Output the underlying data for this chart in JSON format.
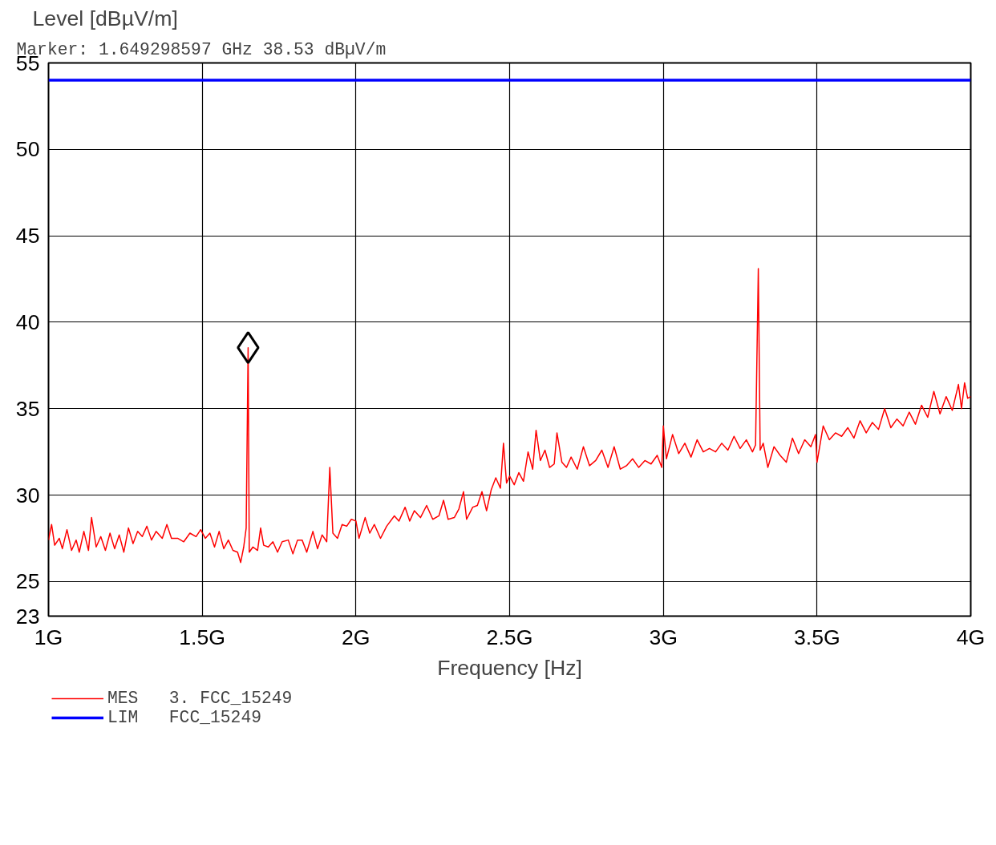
{
  "chart_data": {
    "type": "line",
    "xlabel": "Frequency [Hz]",
    "ylabel": "Level [dBµV/m]",
    "annotations": [
      "Marker:       1.649298597 GHz      38.53 dBµV/m"
    ],
    "xlim": [
      1,
      4
    ],
    "ylim": [
      23,
      55
    ],
    "xticks": [
      {
        "value": 1,
        "label": "1G"
      },
      {
        "value": 1.5,
        "label": "1.5G"
      },
      {
        "value": 2,
        "label": "2G"
      },
      {
        "value": 2.5,
        "label": "2.5G"
      },
      {
        "value": 3,
        "label": "3G"
      },
      {
        "value": 3.5,
        "label": "3.5G"
      },
      {
        "value": 4,
        "label": "4G"
      }
    ],
    "yticks": [
      23,
      25,
      30,
      35,
      40,
      45,
      50,
      55
    ],
    "grid": true,
    "legend": "bottom",
    "line_style": "solid",
    "marker": "none",
    "series": [
      {
        "name": "MES   3. FCC_15249",
        "color": "#ff0000",
        "x": [
          1.0,
          1.01,
          1.02,
          1.035,
          1.045,
          1.06,
          1.075,
          1.09,
          1.1,
          1.115,
          1.13,
          1.14,
          1.155,
          1.17,
          1.185,
          1.2,
          1.215,
          1.23,
          1.245,
          1.26,
          1.275,
          1.29,
          1.305,
          1.32,
          1.335,
          1.35,
          1.37,
          1.385,
          1.4,
          1.42,
          1.44,
          1.46,
          1.48,
          1.495,
          1.51,
          1.525,
          1.54,
          1.555,
          1.57,
          1.585,
          1.6,
          1.615,
          1.625,
          1.635,
          1.643,
          1.6493,
          1.653,
          1.665,
          1.68,
          1.69,
          1.7,
          1.715,
          1.73,
          1.745,
          1.76,
          1.78,
          1.795,
          1.81,
          1.825,
          1.84,
          1.86,
          1.875,
          1.89,
          1.905,
          1.915,
          1.925,
          1.94,
          1.955,
          1.97,
          1.985,
          2.0,
          2.01,
          2.03,
          2.045,
          2.06,
          2.08,
          2.1,
          2.125,
          2.14,
          2.16,
          2.175,
          2.19,
          2.21,
          2.23,
          2.25,
          2.27,
          2.285,
          2.3,
          2.32,
          2.335,
          2.35,
          2.36,
          2.38,
          2.395,
          2.41,
          2.425,
          2.44,
          2.455,
          2.47,
          2.48,
          2.49,
          2.5,
          2.515,
          2.53,
          2.545,
          2.56,
          2.575,
          2.586,
          2.6,
          2.615,
          2.63,
          2.645,
          2.654,
          2.67,
          2.685,
          2.7,
          2.72,
          2.74,
          2.76,
          2.78,
          2.8,
          2.82,
          2.84,
          2.86,
          2.88,
          2.9,
          2.92,
          2.94,
          2.96,
          2.98,
          2.995,
          3.0,
          3.01,
          3.03,
          3.05,
          3.07,
          3.09,
          3.11,
          3.13,
          3.15,
          3.17,
          3.19,
          3.21,
          3.23,
          3.25,
          3.27,
          3.29,
          3.3,
          3.309,
          3.315,
          3.325,
          3.34,
          3.36,
          3.38,
          3.4,
          3.42,
          3.44,
          3.46,
          3.48,
          3.495,
          3.5,
          3.52,
          3.54,
          3.56,
          3.58,
          3.6,
          3.62,
          3.64,
          3.66,
          3.68,
          3.7,
          3.72,
          3.74,
          3.76,
          3.78,
          3.8,
          3.82,
          3.84,
          3.86,
          3.88,
          3.9,
          3.92,
          3.94,
          3.96,
          3.97,
          3.98,
          3.99,
          4.0
        ],
        "values": [
          27.4,
          28.3,
          27.1,
          27.5,
          26.9,
          28.0,
          26.8,
          27.4,
          26.7,
          27.9,
          26.8,
          28.7,
          27.0,
          27.6,
          26.8,
          27.8,
          26.9,
          27.7,
          26.7,
          28.1,
          27.2,
          27.9,
          27.6,
          28.2,
          27.4,
          27.9,
          27.5,
          28.3,
          27.5,
          27.5,
          27.3,
          27.8,
          27.6,
          28.0,
          27.5,
          27.8,
          27.0,
          27.9,
          26.9,
          27.4,
          26.8,
          26.7,
          26.1,
          27.0,
          28.1,
          38.53,
          26.7,
          27.0,
          26.8,
          28.1,
          27.1,
          27.0,
          27.3,
          26.7,
          27.3,
          27.4,
          26.6,
          27.4,
          27.4,
          26.7,
          27.9,
          26.9,
          27.7,
          27.3,
          31.6,
          27.8,
          27.5,
          28.3,
          28.2,
          28.6,
          28.5,
          27.5,
          28.7,
          27.8,
          28.3,
          27.5,
          28.2,
          28.8,
          28.5,
          29.3,
          28.5,
          29.1,
          28.7,
          29.4,
          28.6,
          28.8,
          29.7,
          28.6,
          28.7,
          29.2,
          30.2,
          28.6,
          29.3,
          29.4,
          30.2,
          29.1,
          30.3,
          31.0,
          30.4,
          33.0,
          30.7,
          31.1,
          30.6,
          31.3,
          30.8,
          32.5,
          31.5,
          33.75,
          32.0,
          32.6,
          31.6,
          31.8,
          33.6,
          31.9,
          31.6,
          32.2,
          31.5,
          32.8,
          31.7,
          32.0,
          32.6,
          31.6,
          32.8,
          31.5,
          31.7,
          32.1,
          31.6,
          32.0,
          31.8,
          32.3,
          31.6,
          34.0,
          32.1,
          33.5,
          32.4,
          33.0,
          32.2,
          33.2,
          32.5,
          32.7,
          32.5,
          33.0,
          32.6,
          33.4,
          32.7,
          33.2,
          32.5,
          32.9,
          43.1,
          32.6,
          33.0,
          31.6,
          32.8,
          32.3,
          31.9,
          33.3,
          32.4,
          33.2,
          32.8,
          33.5,
          31.9,
          34.0,
          33.2,
          33.6,
          33.4,
          33.9,
          33.3,
          34.3,
          33.6,
          34.2,
          33.8,
          35.0,
          33.9,
          34.4,
          34.0,
          34.8,
          34.1,
          35.2,
          34.5,
          36.0,
          34.7,
          35.7,
          34.9,
          36.4,
          35.0,
          36.5,
          35.6,
          35.7
        ]
      },
      {
        "name": "LIM   FCC_15249",
        "color": "#0000ff",
        "x": [
          1,
          4
        ],
        "values": [
          54,
          54
        ]
      },
      {
        "type": "scatter",
        "marker": "diamond",
        "color": "#000000",
        "x": [
          1.649298597
        ],
        "values": [
          38.53
        ]
      }
    ]
  }
}
